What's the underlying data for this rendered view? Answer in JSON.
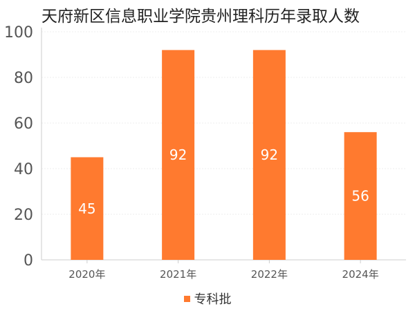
{
  "colors": {
    "bar": "#ff7a2f",
    "axis": "#cccccc",
    "grid": "#eeeeee",
    "text": "#555555",
    "label": "#ffffff"
  },
  "chart_data": {
    "type": "bar",
    "title": "天府新区信息职业学院贵州理科历年录取人数",
    "categories": [
      "2020年",
      "2021年",
      "2022年",
      "2024年"
    ],
    "series": [
      {
        "name": "专科批",
        "values": [
          45,
          92,
          92,
          56
        ]
      }
    ],
    "ylim": [
      0,
      100
    ],
    "yticks": [
      0,
      20,
      40,
      60,
      80,
      100
    ],
    "grid": true,
    "legend": "bottom",
    "data_labels": true
  }
}
